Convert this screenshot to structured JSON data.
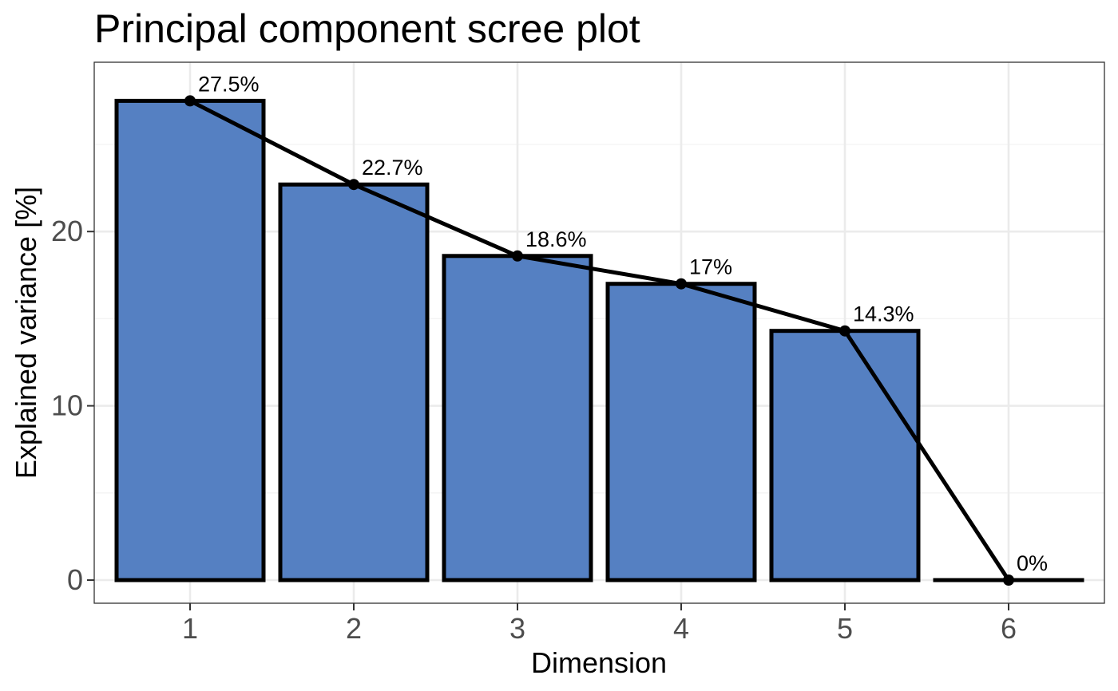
{
  "chart_data": {
    "type": "bar",
    "title": "Principal component scree plot",
    "xlabel": "Dimension",
    "ylabel": "Explained variance [%]",
    "categories": [
      "1",
      "2",
      "3",
      "4",
      "5",
      "6"
    ],
    "values": [
      27.5,
      22.7,
      18.6,
      17.0,
      14.3,
      0.0
    ],
    "data_labels": [
      "27.5%",
      "22.7%",
      "18.6%",
      "17%",
      "14.3%",
      "0%"
    ],
    "y_ticks": [
      0,
      10,
      20
    ],
    "y_tick_labels": [
      "0",
      "10",
      "20"
    ],
    "ylim": [
      -1.3,
      29.4
    ],
    "overlay": "line with points connecting bar tops",
    "grid": true,
    "legend": "none",
    "colors": {
      "bar_fill": "#5580c2",
      "bar_outline": "#000000",
      "line": "#000000",
      "grid_major": "#ebebeb",
      "grid_minor": "#f3f3f3",
      "panel_border": "#333333",
      "tick_text": "#4d4d4d"
    }
  }
}
